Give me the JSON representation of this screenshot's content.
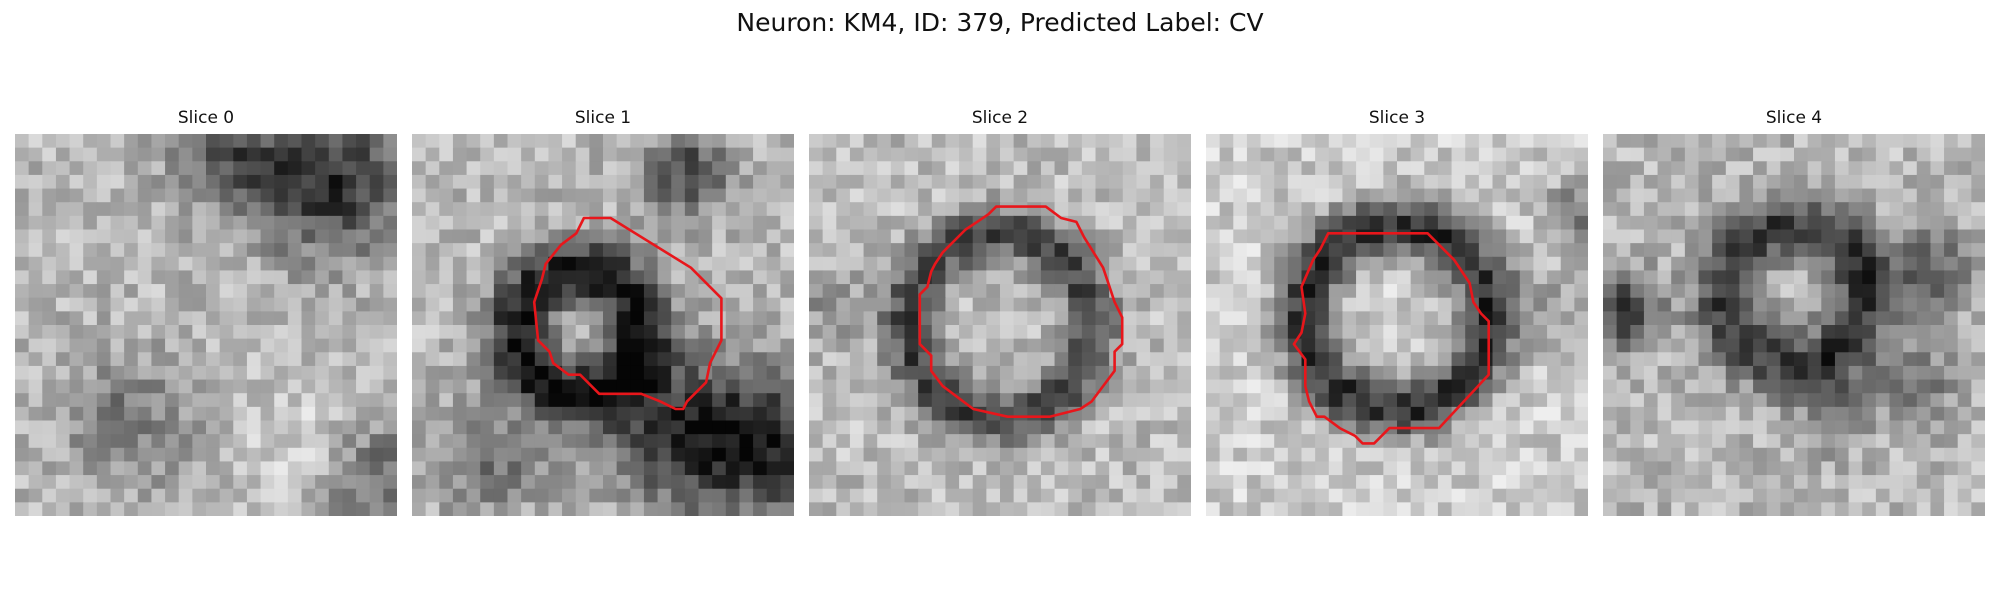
{
  "figure": {
    "title": "Neuron: KM4, ID: 379, Predicted Label: CV"
  },
  "slices": [
    {
      "label": "Slice 0",
      "has_contour": false
    },
    {
      "label": "Slice 1",
      "has_contour": true
    },
    {
      "label": "Slice 2",
      "has_contour": true
    },
    {
      "label": "Slice 3",
      "has_contour": true
    },
    {
      "label": "Slice 4",
      "has_contour": false
    }
  ],
  "colors": {
    "contour": "#e8161b",
    "background": "#ffffff"
  }
}
